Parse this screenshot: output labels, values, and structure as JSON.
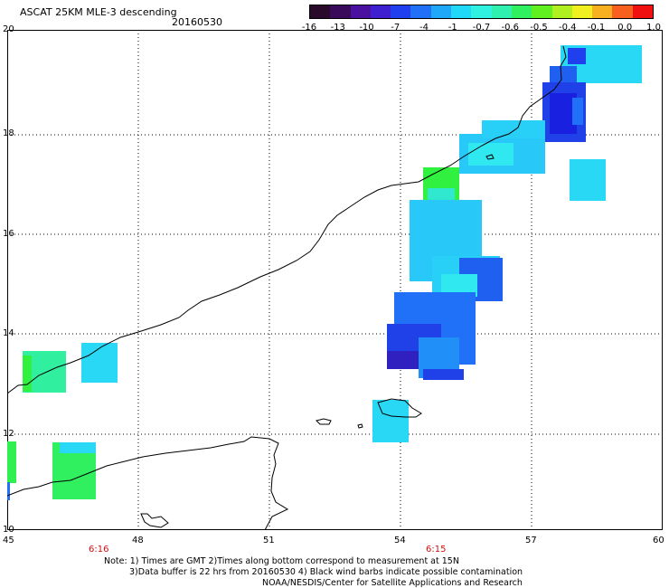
{
  "header": {
    "title": "ASCAT 25KM MLE-3 descending",
    "date": "20160530"
  },
  "colorbar": {
    "colors": [
      "#2a0a2a",
      "#3a0a5a",
      "#4a10a0",
      "#3f20d0",
      "#2040f0",
      "#2070f8",
      "#20a8f8",
      "#20d8f8",
      "#30f0e0",
      "#30f0b0",
      "#30f060",
      "#60f020",
      "#b0f020",
      "#f0f020",
      "#f8b020",
      "#f86020",
      "#f01010"
    ],
    "labels": [
      "-16",
      "-13",
      "-10",
      "-7",
      "-4",
      "-1",
      "-0.7",
      "-0.6",
      "-0.5",
      "-0.4",
      "-0.1",
      "0.0",
      "1.0"
    ]
  },
  "map": {
    "lat_labels": [
      "20",
      "18",
      "16",
      "14",
      "12",
      "10"
    ],
    "lon_labels": [
      "45",
      "48",
      "51",
      "54",
      "57",
      "60"
    ],
    "time_labels": [
      "6:16",
      "6:15"
    ]
  },
  "notes": {
    "line1": "Note: 1) Times are GMT 2)Times along bottom correspond to measurement at 15N",
    "line2": "3)Data buffer is 22 hrs from 20160530 4) Black wind barbs indicate possible contamination",
    "line3": "NOAA/NESDIS/Center for Satellite Applications and Research"
  }
}
